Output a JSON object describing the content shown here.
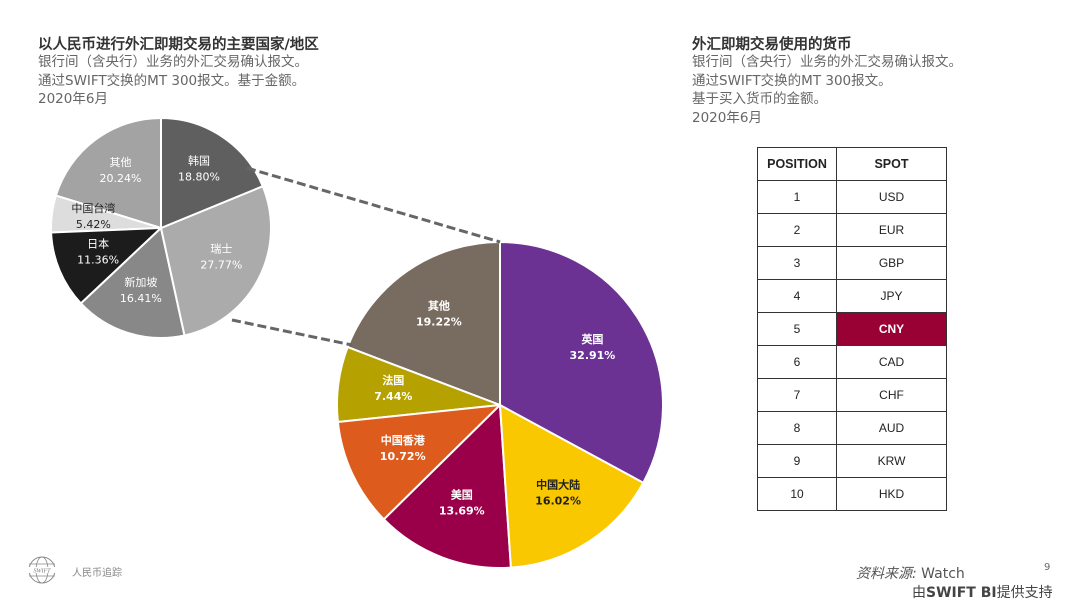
{
  "left": {
    "title": "以人民币进行外汇即期交易的主要国家/地区",
    "subtitle": [
      "银行间（含央行）业务的外汇交易确认报文。",
      "通过SWIFT交换的MT 300报文。基于金额。",
      "2020年6月"
    ]
  },
  "right": {
    "title": "外汇即期交易使用的货币",
    "subtitle": [
      "银行间（含央行）业务的外汇交易确认报文。",
      "通过SWIFT交换的MT 300报文。",
      "基于买入货币的金额。",
      "2020年6月"
    ]
  },
  "chart_data": [
    {
      "type": "pie",
      "title": "",
      "slices": [
        {
          "label": "韩国",
          "value": 18.8,
          "display": "18.80%",
          "color": "#5f5f5f"
        },
        {
          "label": "瑞士",
          "value": 27.77,
          "display": "27.77%",
          "color": "#ababab"
        },
        {
          "label": "新加坡",
          "value": 16.41,
          "display": "16.41%",
          "color": "#888888"
        },
        {
          "label": "日本",
          "value": 11.36,
          "display": "11.36%",
          "color": "#1c1c1c"
        },
        {
          "label": "中国台湾",
          "value": 5.42,
          "display": "5.42%",
          "color": "#dddddd"
        },
        {
          "label": "其他",
          "value": 20.24,
          "display": "20.24%",
          "color": "#a3a3a3"
        }
      ]
    },
    {
      "type": "pie",
      "title": "",
      "slices": [
        {
          "label": "英国",
          "value": 32.91,
          "display": "32.91%",
          "color": "#6b3294"
        },
        {
          "label": "中国大陆",
          "value": 16.02,
          "display": "16.02%",
          "color": "#f9c800"
        },
        {
          "label": "美国",
          "value": 13.69,
          "display": "13.69%",
          "color": "#990049"
        },
        {
          "label": "中国香港",
          "value": 10.72,
          "display": "10.72%",
          "color": "#de5b1e"
        },
        {
          "label": "法国",
          "value": 7.44,
          "display": "7.44%",
          "color": "#b5a100"
        },
        {
          "label": "其他",
          "value": 19.22,
          "display": "19.22%",
          "color": "#786b60"
        }
      ]
    }
  ],
  "table": {
    "headers": [
      "POSITION",
      "SPOT"
    ],
    "highlight_color": "#990033",
    "rows": [
      [
        "1",
        "USD"
      ],
      [
        "2",
        "EUR"
      ],
      [
        "3",
        "GBP"
      ],
      [
        "4",
        "JPY"
      ],
      [
        "5",
        "CNY"
      ],
      [
        "6",
        "CAD"
      ],
      [
        "7",
        "CHF"
      ],
      [
        "8",
        "AUD"
      ],
      [
        "9",
        "KRW"
      ],
      [
        "10",
        "HKD"
      ]
    ],
    "highlight_row": 4
  },
  "footer": {
    "logo": "SWIFT",
    "report": "人民币追踪",
    "page": "9",
    "source_prefix": "资料来源: ",
    "source": "Watch",
    "by_prefix": "由",
    "by_brand": "SWIFT BI",
    "by_suffix": "提供支持"
  }
}
